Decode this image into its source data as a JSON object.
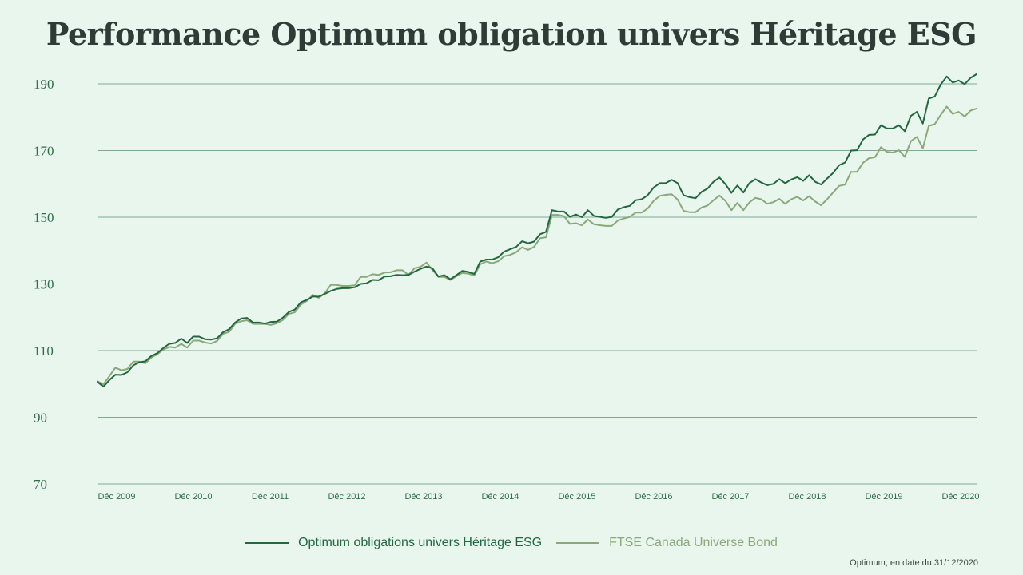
{
  "title": "Performance Optimum obligation univers Héritage ESG",
  "footnote": "Optimum, en date du 31/12/2020",
  "colors": {
    "background": "#e9f6ee",
    "grid": "#2f6e4a",
    "series1": "#22673f",
    "series2": "#8aa87a"
  },
  "chart_data": {
    "type": "line",
    "title": "Performance Optimum obligation univers Héritage ESG",
    "xlabel": "",
    "ylabel": "",
    "ylim": [
      70,
      192
    ],
    "y_ticks": [
      70,
      90,
      110,
      130,
      150,
      170,
      190
    ],
    "grid": true,
    "legend_position": "bottom",
    "x_ticks": [
      "Déc 2009",
      "Déc 2010",
      "Déc 2011",
      "Déc 2012",
      "Déc 2013",
      "Déc 2014",
      "Déc 2015",
      "Déc 2016",
      "Déc 2017",
      "Déc 2018",
      "Déc 2019",
      "Déc 2020"
    ],
    "x_start": "Déc 2009",
    "x_end": "Déc 2020",
    "series": [
      {
        "name": "Optimum obligations univers Héritage ESG",
        "values": [
          100.6,
          99.2,
          101.2,
          102.8,
          102.7,
          103.5,
          105.6,
          106.5,
          106.8,
          108.4,
          109.2,
          110.8,
          112.0,
          112.3,
          113.6,
          112.3,
          114.2,
          114.2,
          113.4,
          113.3,
          113.7,
          115.5,
          116.4,
          118.4,
          119.6,
          119.8,
          118.4,
          118.4,
          118.1,
          118.6,
          118.7,
          119.9,
          121.6,
          122.3,
          124.5,
          125.2,
          126.2,
          126.2,
          127.0,
          127.9,
          128.5,
          128.7,
          128.7,
          129.0,
          130.0,
          130.2,
          131.2,
          131.1,
          132.2,
          132.3,
          132.7,
          132.6,
          132.7,
          133.7,
          134.5,
          135.2,
          134.7,
          132.2,
          132.6,
          131.4,
          132.6,
          133.9,
          133.6,
          133.0,
          136.7,
          137.3,
          137.3,
          138.0,
          139.7,
          140.4,
          141.1,
          142.8,
          142.2,
          142.7,
          144.9,
          145.6,
          152.1,
          151.7,
          151.7,
          150.1,
          150.8,
          150.0,
          152.1,
          150.4,
          150.1,
          149.8,
          150.1,
          152.3,
          153.0,
          153.4,
          155.1,
          155.4,
          156.6,
          158.9,
          160.2,
          160.2,
          161.2,
          160.2,
          156.6,
          156.0,
          155.7,
          157.6,
          158.6,
          160.6,
          161.9,
          159.9,
          157.3,
          159.5,
          157.4,
          160.2,
          161.4,
          160.4,
          159.6,
          160.0,
          161.4,
          160.2,
          161.3,
          162.0,
          160.9,
          162.6,
          160.6,
          159.8,
          161.6,
          163.3,
          165.6,
          166.4,
          170.0,
          170.1,
          173.3,
          174.7,
          174.8,
          177.6,
          176.6,
          176.6,
          177.6,
          175.8,
          180.4,
          181.6,
          178.1,
          185.6,
          186.2,
          189.8,
          192.2,
          190.4,
          191.0,
          189.9,
          191.8,
          192.9
        ]
      },
      {
        "name": "FTSE Canada Universe Bond",
        "values": [
          100.8,
          99.9,
          102.4,
          104.9,
          104.1,
          104.5,
          106.7,
          106.7,
          106.2,
          107.9,
          108.9,
          110.3,
          111.1,
          110.9,
          112.0,
          110.9,
          113.0,
          113.0,
          112.4,
          112.1,
          112.9,
          115.0,
          115.6,
          118.0,
          118.8,
          119.1,
          118.0,
          118.0,
          118.0,
          117.7,
          118.2,
          119.2,
          121.0,
          121.5,
          123.8,
          124.9,
          126.7,
          125.8,
          127.2,
          129.7,
          129.7,
          129.4,
          129.4,
          129.6,
          132.1,
          132.1,
          132.9,
          132.7,
          133.4,
          133.5,
          134.1,
          134.1,
          132.7,
          134.7,
          135.1,
          136.4,
          134.2,
          132.1,
          132.1,
          131.2,
          132.3,
          133.3,
          133.1,
          132.5,
          135.9,
          136.7,
          136.2,
          136.8,
          138.3,
          138.7,
          139.5,
          141.0,
          140.2,
          141.1,
          143.7,
          144.0,
          150.7,
          150.7,
          150.3,
          148.0,
          148.2,
          147.6,
          149.3,
          147.9,
          147.6,
          147.4,
          147.4,
          149.0,
          149.6,
          150.1,
          151.4,
          151.4,
          152.6,
          154.9,
          156.4,
          156.7,
          156.9,
          155.3,
          151.9,
          151.5,
          151.5,
          152.9,
          153.5,
          155.1,
          156.5,
          154.9,
          152.1,
          154.3,
          152.1,
          154.4,
          155.8,
          155.4,
          154.0,
          154.5,
          155.5,
          154.0,
          155.4,
          156.1,
          155.0,
          156.3,
          154.7,
          153.6,
          155.4,
          157.4,
          159.4,
          159.8,
          163.6,
          163.6,
          166.3,
          167.7,
          168.0,
          171.0,
          169.6,
          169.4,
          170.1,
          168.1,
          172.8,
          174.1,
          170.7,
          177.4,
          177.9,
          180.7,
          183.2,
          181.0,
          181.6,
          180.2,
          182.0,
          182.6
        ]
      }
    ]
  }
}
